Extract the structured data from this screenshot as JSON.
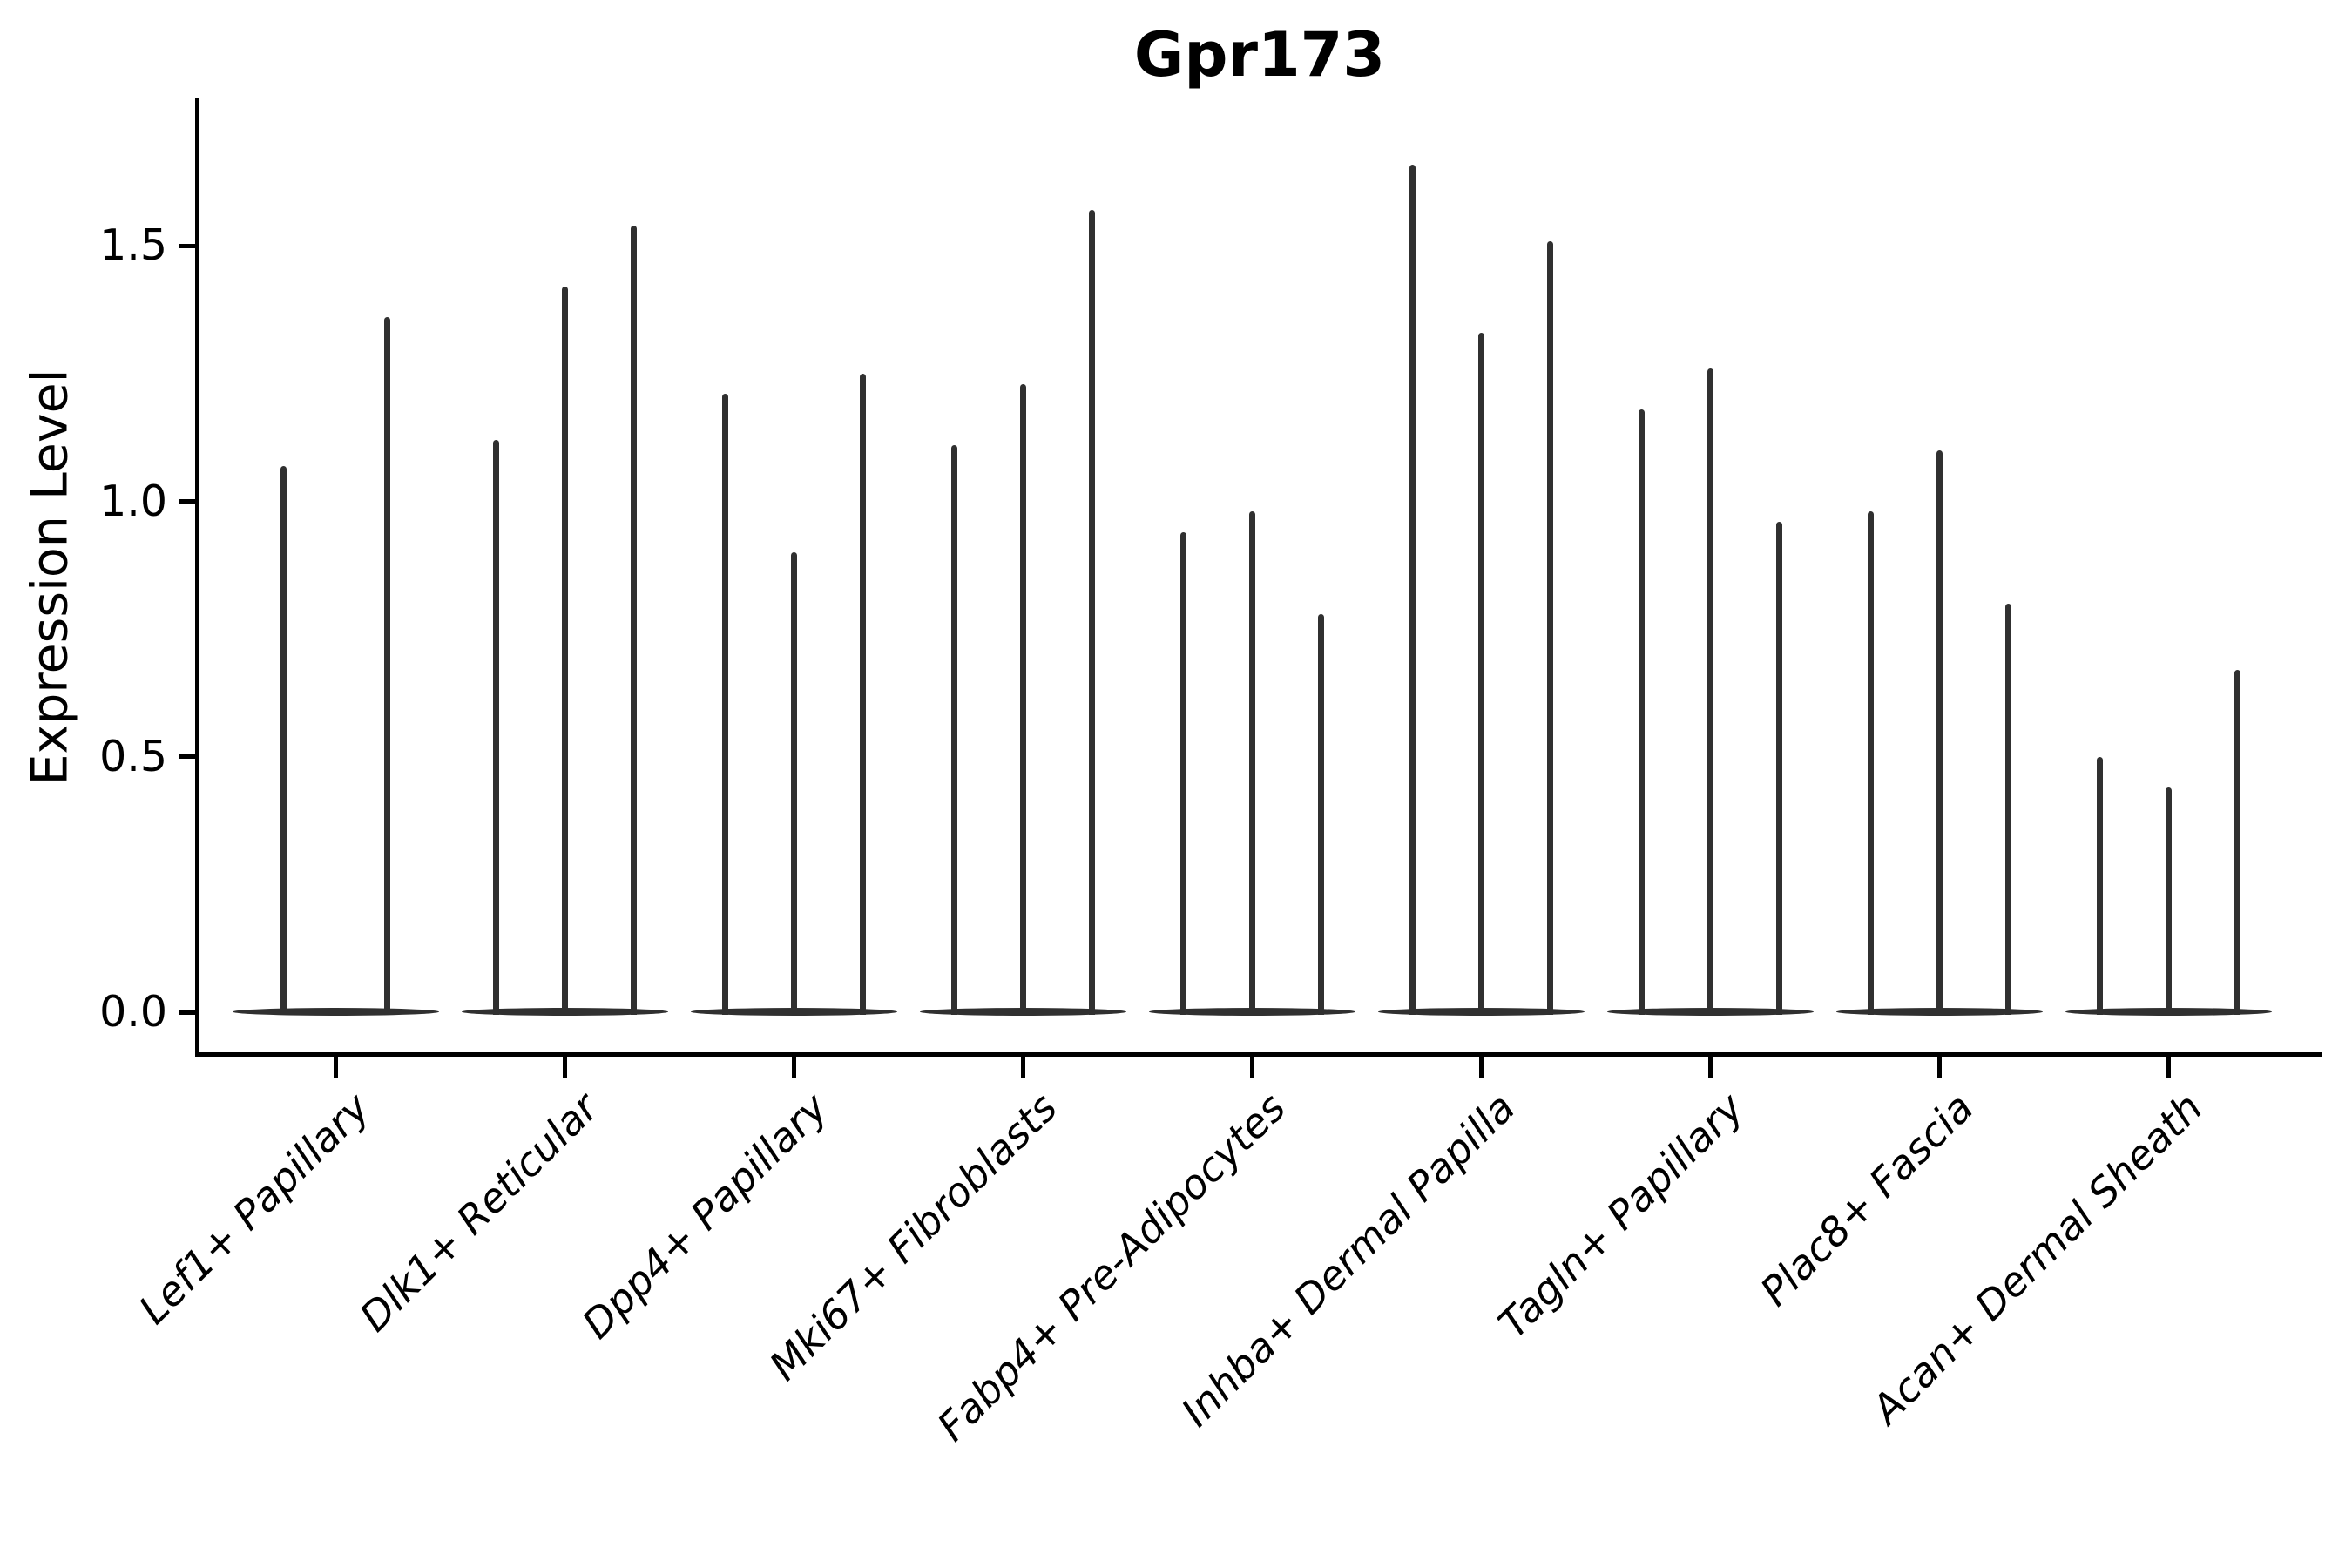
{
  "title": "Gpr173",
  "chart_data": {
    "type": "violin",
    "title": "Gpr173",
    "xlabel": "",
    "ylabel": "Expression Level",
    "grid": false,
    "legend": "none",
    "ylim": [
      -0.08,
      1.78
    ],
    "yticks": [
      0.0,
      0.5,
      1.0,
      1.5
    ],
    "ytick_labels": [
      "0.0",
      "0.5",
      "1.0",
      "1.5"
    ],
    "categories": [
      "Lef1+ Papillary",
      "Dlk1+ Reticular",
      "Dpp4+ Papillary",
      "Mki67+ Fibroblasts",
      "Fabp4+ Pre-Adipocytes",
      "Inhba+ Dermal Papilla",
      "Tagln+ Papillary",
      "Plac8+ Fascia",
      "Acan+ Dermal Sheath"
    ],
    "series": [
      {
        "category": "Lef1+ Papillary",
        "violin_max_heights": [
          1.07,
          1.36
        ]
      },
      {
        "category": "Dlk1+ Reticular",
        "violin_max_heights": [
          1.12,
          1.42,
          1.54
        ]
      },
      {
        "category": "Dpp4+ Papillary",
        "violin_max_heights": [
          1.21,
          0.9,
          1.25
        ]
      },
      {
        "category": "Mki67+ Fibroblasts",
        "violin_max_heights": [
          1.11,
          1.23,
          1.57
        ]
      },
      {
        "category": "Fabp4+ Pre-Adipocytes",
        "violin_max_heights": [
          0.94,
          0.98,
          0.78
        ]
      },
      {
        "category": "Inhba+ Dermal Papilla",
        "violin_max_heights": [
          1.66,
          1.33,
          1.51
        ]
      },
      {
        "category": "Tagln+ Papillary",
        "violin_max_heights": [
          1.18,
          1.26,
          0.96
        ]
      },
      {
        "category": "Plac8+ Fascia",
        "violin_max_heights": [
          0.98,
          1.1,
          0.8
        ]
      },
      {
        "category": "Acan+ Dermal Sheath",
        "violin_max_heights": [
          0.5,
          0.44,
          0.67
        ]
      }
    ],
    "violin_color": "#303030",
    "axis_color": "#000000",
    "background_color": "#ffffff"
  }
}
